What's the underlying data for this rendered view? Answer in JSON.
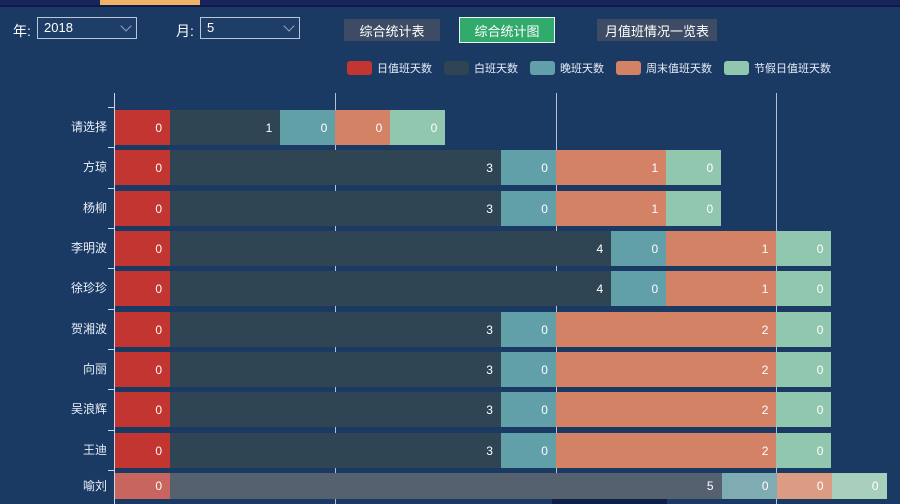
{
  "page": {
    "background": "#1a3a64",
    "top_tab_color": "#f0b266"
  },
  "filters": {
    "year_label": "年:",
    "year_value": "2018",
    "month_label": "月:",
    "month_value": "5"
  },
  "buttons": [
    {
      "label": "综合统计表",
      "active": false
    },
    {
      "label": "综合统计图",
      "active": true
    },
    {
      "label": "月值班情况一览表",
      "active": false
    }
  ],
  "legend": [
    {
      "label": "日值班天数",
      "color": "#c23531"
    },
    {
      "label": "白班天数",
      "color": "#2f4554"
    },
    {
      "label": "晚班天数",
      "color": "#61a0a8"
    },
    {
      "label": "周末值班天数",
      "color": "#d48265"
    },
    {
      "label": "节假日值班天数",
      "color": "#91c7ae"
    }
  ],
  "chart_data": {
    "type": "bar",
    "orientation": "horizontal",
    "stacked": true,
    "categories": [
      "请选择",
      "方琼",
      "杨柳",
      "李明波",
      "徐珍珍",
      "贺湘波",
      "向丽",
      "吴浪辉",
      "王迪",
      "喻刘"
    ],
    "series": [
      {
        "name": "日值班天数",
        "color": "#c23531",
        "values": [
          0,
          0,
          0,
          0,
          0,
          0,
          0,
          0,
          0,
          0
        ]
      },
      {
        "name": "白班天数",
        "color": "#2f4554",
        "values": [
          1,
          3,
          3,
          4,
          4,
          3,
          3,
          3,
          3,
          5
        ]
      },
      {
        "name": "晚班天数",
        "color": "#61a0a8",
        "values": [
          0,
          0,
          0,
          0,
          0,
          0,
          0,
          0,
          0,
          0
        ]
      },
      {
        "name": "周末值班天数",
        "color": "#d48265",
        "values": [
          0,
          1,
          1,
          1,
          1,
          2,
          2,
          2,
          2,
          0
        ]
      },
      {
        "name": "节假日值班天数",
        "color": "#91c7ae",
        "values": [
          0,
          0,
          0,
          0,
          0,
          0,
          0,
          0,
          0,
          0
        ]
      }
    ],
    "value_labels_shown": true,
    "value_gridline_values": [
      2,
      4,
      6
    ],
    "axis_range_estimate": [
      0,
      7
    ],
    "zero_value_rendered_as": 0.5,
    "faded_row_index": 9,
    "faded_colors": {
      "日值班天数": "#c7655e",
      "白班天数": "#56616f",
      "晚班天数": "#7fabb2",
      "周末值班天数": "#db9c83",
      "节假日值班天数": "#a8cfbb"
    },
    "legend_position": "top-center",
    "grid": true,
    "title": ""
  }
}
